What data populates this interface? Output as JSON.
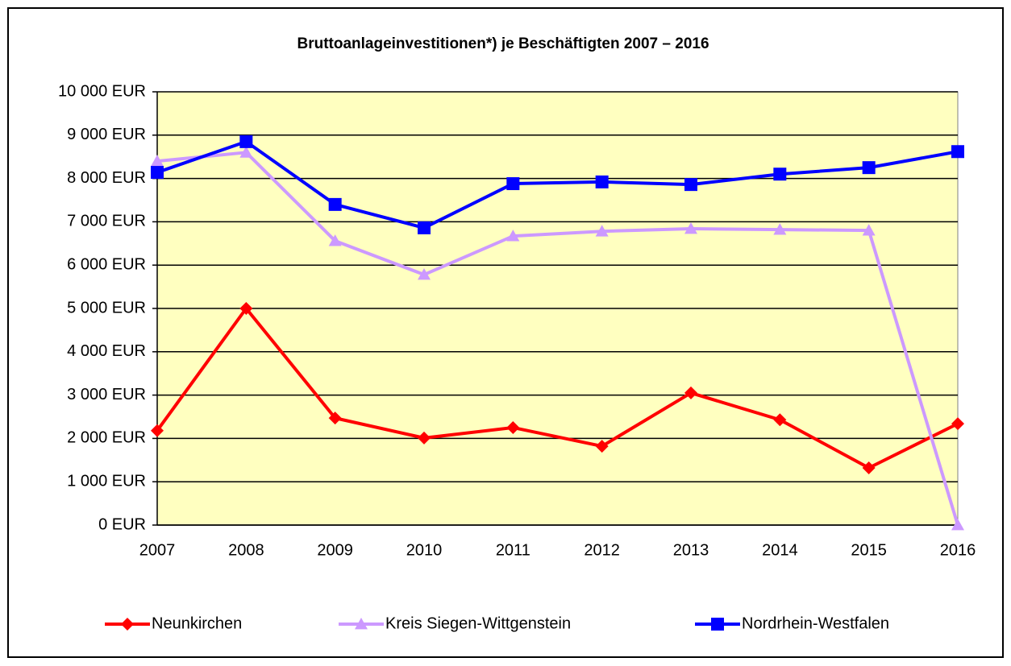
{
  "chart_data": {
    "type": "line",
    "title": "Bruttoanlageinvestitionen*) je Beschäftigten 2007 – 2016",
    "categories": [
      "2007",
      "2008",
      "2009",
      "2010",
      "2011",
      "2012",
      "2013",
      "2014",
      "2015",
      "2016"
    ],
    "series": [
      {
        "name": "Neunkirchen",
        "color": "#ff0000",
        "marker": "diamond",
        "values": [
          2180,
          5000,
          2470,
          2010,
          2250,
          1820,
          3050,
          2430,
          1320,
          2340
        ]
      },
      {
        "name": "Kreis Siegen-Wittgenstein",
        "color": "#cc99ff",
        "marker": "triangle",
        "values": [
          8400,
          8600,
          6560,
          5780,
          6670,
          6780,
          6840,
          6820,
          6800,
          0
        ]
      },
      {
        "name": "Nordrhein-Westfalen",
        "color": "#0000ff",
        "marker": "square",
        "values": [
          8140,
          8850,
          7400,
          6860,
          7880,
          7920,
          7860,
          8100,
          8250,
          8620
        ]
      }
    ],
    "ylim": [
      0,
      10000
    ],
    "yticks": [
      {
        "value": 0,
        "label": "0 EUR"
      },
      {
        "value": 1000,
        "label": "1 000 EUR"
      },
      {
        "value": 2000,
        "label": "2 000 EUR"
      },
      {
        "value": 3000,
        "label": "3 000 EUR"
      },
      {
        "value": 4000,
        "label": "4 000 EUR"
      },
      {
        "value": 5000,
        "label": "5 000 EUR"
      },
      {
        "value": 6000,
        "label": "6 000 EUR"
      },
      {
        "value": 7000,
        "label": "7 000 EUR"
      },
      {
        "value": 8000,
        "label": "8 000 EUR"
      },
      {
        "value": 9000,
        "label": "9 000 EUR"
      },
      {
        "value": 10000,
        "label": "10 000 EUR"
      }
    ],
    "grid": true,
    "legend": "bottom",
    "plot_background": "#ffffc0"
  }
}
